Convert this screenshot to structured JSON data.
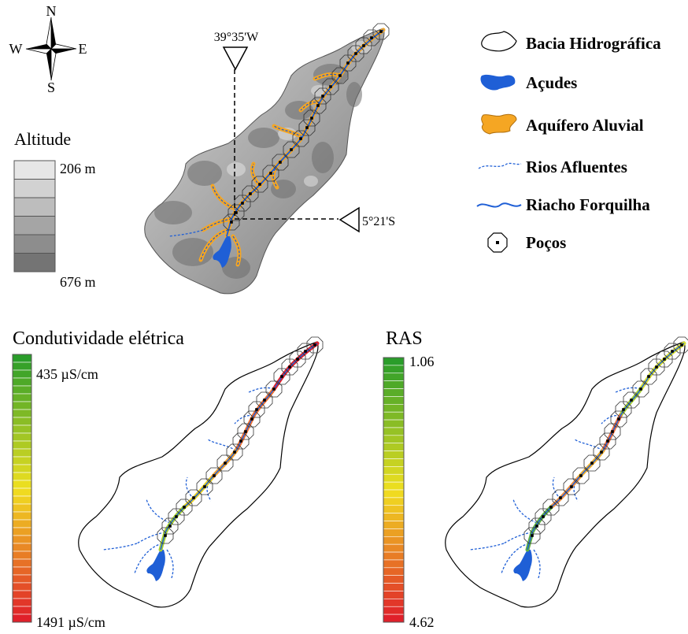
{
  "compass": {
    "n": "N",
    "s": "S",
    "e": "E",
    "w": "W"
  },
  "altitude_legend": {
    "title": "Altitude",
    "max_label": "206 m",
    "min_label": "676 m",
    "swatches": [
      "#e6e6e6",
      "#d2d2d2",
      "#bdbdbd",
      "#a5a5a5",
      "#8d8d8d",
      "#747474"
    ]
  },
  "coordinates": {
    "longitude": "39°35'W",
    "latitude": "5°21'S"
  },
  "legend": {
    "basin": "Bacia Hidrográfica",
    "reservoirs": "Açudes",
    "aquifer": "Aquífero Aluvial",
    "tributaries": "Rios Afluentes",
    "main_stream": "Riacho Forquilha",
    "wells": "Poços"
  },
  "colors": {
    "water": "#1f5fd6",
    "aquifer": "#f5a623",
    "ramp_good": "#2a9d2a",
    "ramp_mid": "#f0e020",
    "ramp_bad": "#e0202a"
  },
  "conductivity": {
    "title": "Condutividade elétrica",
    "top_label": "435 µS/cm",
    "bottom_label": "1491 µS/cm"
  },
  "ras": {
    "title": "RAS",
    "top_label": "1.06",
    "bottom_label": "4.62"
  }
}
